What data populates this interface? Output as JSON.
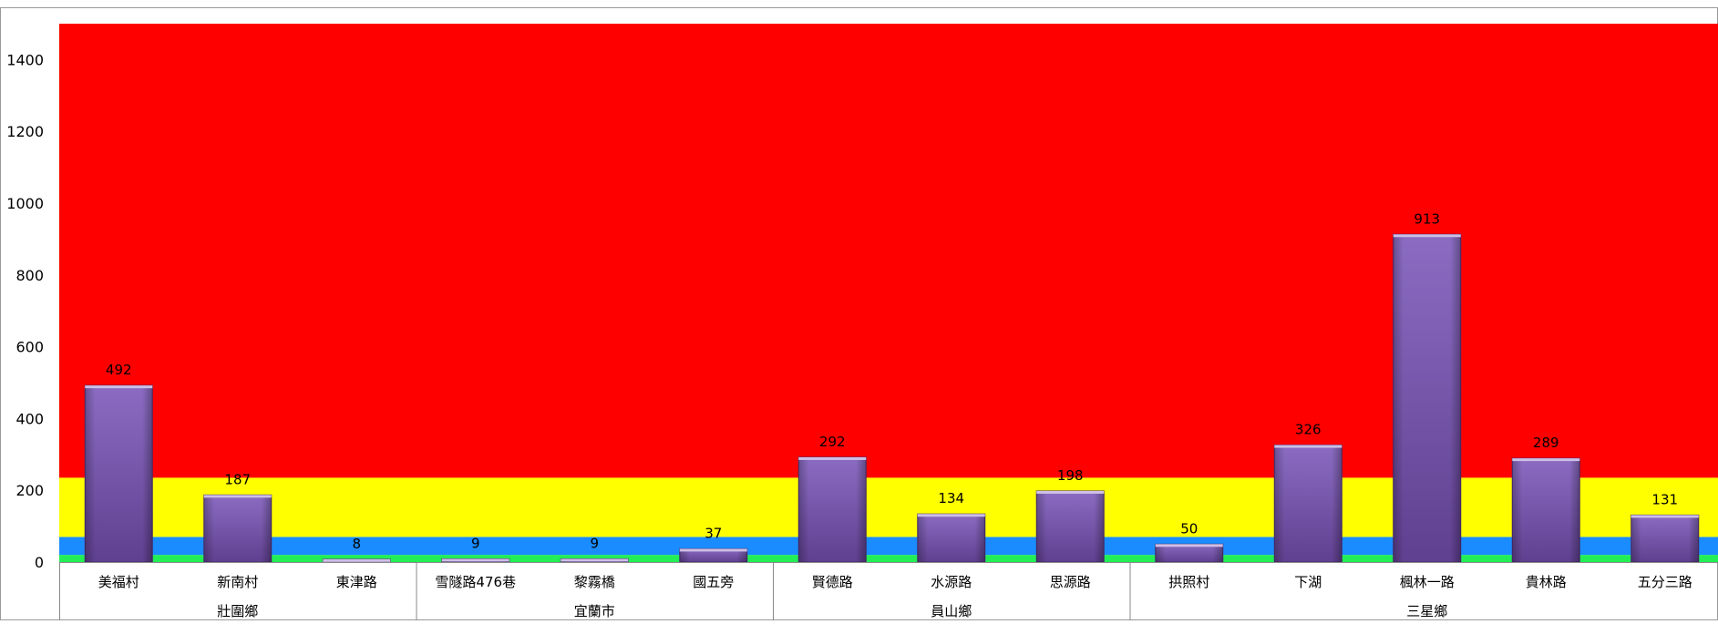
{
  "chart_data": {
    "type": "bar",
    "title": "",
    "xlabel": "",
    "ylabel": "",
    "ylim": [
      0,
      1500
    ],
    "yticks": [
      0,
      200,
      400,
      600,
      800,
      1000,
      1200,
      1400
    ],
    "grid": false,
    "legend": "none",
    "categories": [
      "美福村",
      "新南村",
      "東津路",
      "雪隧路476巷",
      "黎霧橋",
      "國五旁",
      "賢德路",
      "水源路",
      "思源路",
      "拱照村",
      "下湖",
      "楓林一路",
      "貴林路",
      "五分三路"
    ],
    "groups": [
      {
        "name": "壯圍鄉",
        "count": 3
      },
      {
        "name": "宜蘭市",
        "count": 3
      },
      {
        "name": "員山鄉",
        "count": 3
      },
      {
        "name": "三星鄉",
        "count": 5
      }
    ],
    "series": [
      {
        "values": [
          492,
          187,
          8,
          9,
          9,
          37,
          292,
          134,
          198,
          50,
          326,
          913,
          289,
          131
        ]
      }
    ],
    "data_labels": [
      "492",
      "187",
      "8",
      "9",
      "9",
      "37",
      "292",
      "134",
      "198",
      "50",
      "326",
      "913",
      "289",
      "131"
    ],
    "background_bands": [
      {
        "from": 0,
        "to": 20,
        "color": "#22ee55"
      },
      {
        "from": 20,
        "to": 70,
        "color": "#1a8cff"
      },
      {
        "from": 70,
        "to": 235,
        "color": "#ffff00"
      },
      {
        "from": 235,
        "to": 1500,
        "color": "#ff0000"
      }
    ],
    "colors": {
      "bar_top": "#8b6cc2",
      "bar_bottom": "#5f3f8f",
      "bar_edge": "#cdbfe6",
      "axis": "#888888",
      "text": "#000000"
    }
  }
}
